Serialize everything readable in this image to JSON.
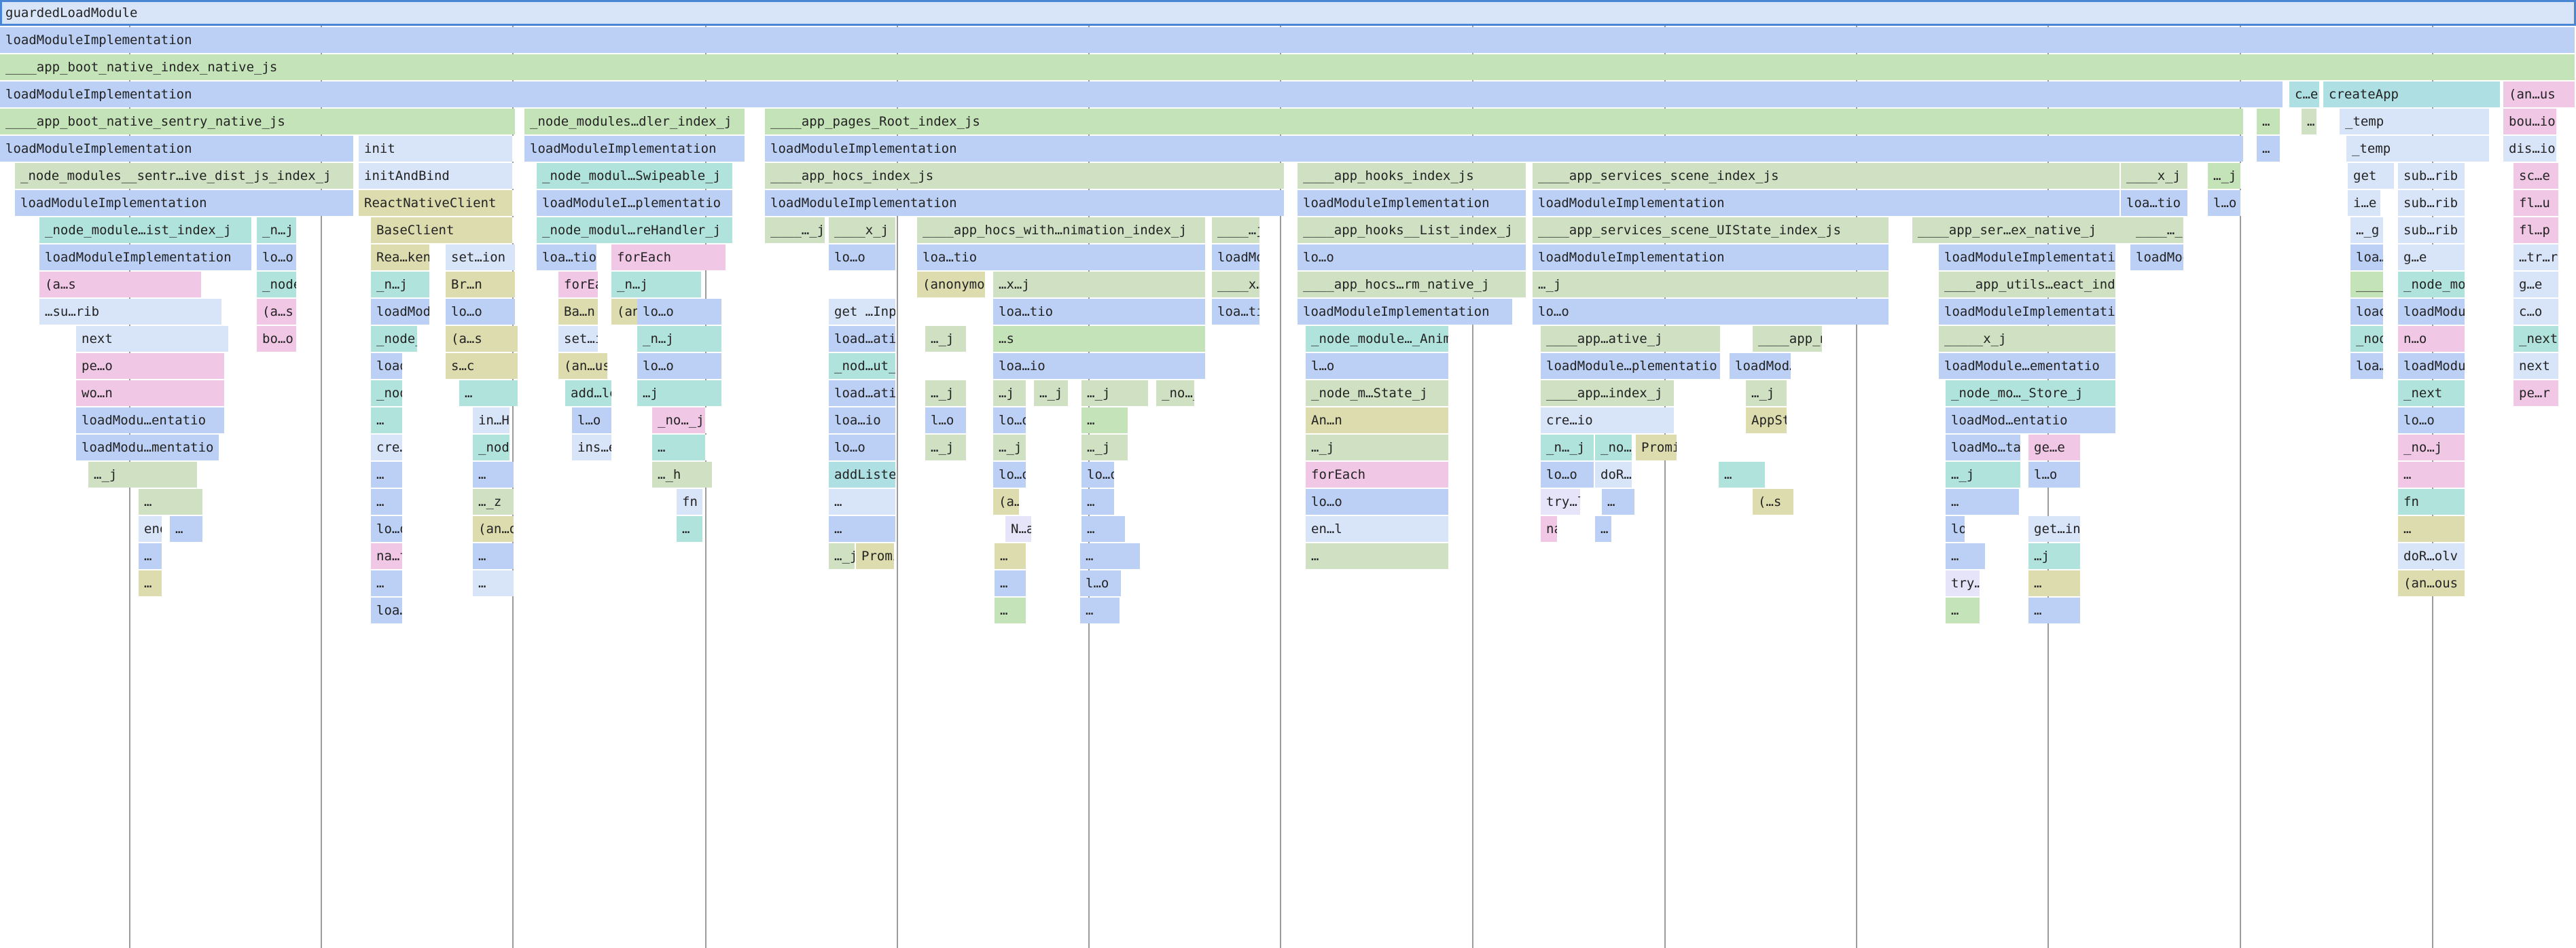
{
  "colors": {
    "blue": "#bcd0f5",
    "green": "#c5e3b8",
    "lightblue": "#d8e4f8",
    "teal": "#b0e3dc",
    "pink": "#f1c7e6",
    "olive": "#dcdcae",
    "sage": "#cfe1c2",
    "lavender": "#e6e4f8",
    "cyan": "#aedfe3",
    "rose": "#f3c4e1"
  },
  "frames": [
    {
      "text": "guardedLoadModule",
      "c": "lightblue",
      "sel": true
    },
    {
      "text": "loadModuleImplementation",
      "c": "blue"
    },
    {
      "text": "____app_boot_native_index_native_js",
      "c": "green"
    },
    {
      "text": "loadModuleImplementation",
      "c": "blue"
    },
    {
      "text": "c…e",
      "c": "cyan"
    },
    {
      "text": "createApp",
      "c": "cyan"
    },
    {
      "text": "(an…us",
      "c": "pink"
    },
    {
      "text": "____app_boot_native_sentry_native_js",
      "c": "green"
    },
    {
      "text": "_node_modules…dler_index_j",
      "c": "green"
    },
    {
      "text": "____app_pages_Root_index_js",
      "c": "green"
    },
    {
      "text": "…",
      "c": "green"
    },
    {
      "text": "…",
      "c": "sage"
    },
    {
      "text": "_temp",
      "c": "lightblue"
    },
    {
      "text": "bou…io",
      "c": "pink"
    },
    {
      "text": "loadModuleImplementation",
      "c": "blue"
    },
    {
      "text": "init",
      "c": "lightblue"
    },
    {
      "text": "loadModuleImplementation",
      "c": "blue"
    },
    {
      "text": "loadModuleImplementation",
      "c": "blue"
    },
    {
      "text": "…",
      "c": "blue"
    },
    {
      "text": "_temp",
      "c": "lightblue"
    },
    {
      "text": "dis…io",
      "c": "lightblue"
    },
    {
      "text": "_node_modules__sentr…ive_dist_js_index_j",
      "c": "sage"
    },
    {
      "text": "initAndBind",
      "c": "lightblue"
    },
    {
      "text": "_node_modul…Swipeable_j",
      "c": "teal"
    },
    {
      "text": "____app_hocs_index_js",
      "c": "sage"
    },
    {
      "text": "____app_hooks_index_js",
      "c": "sage"
    },
    {
      "text": "____app_services_scene_index_js",
      "c": "sage"
    },
    {
      "text": "____x_j",
      "c": "sage"
    },
    {
      "text": "…_j",
      "c": "green"
    },
    {
      "text": "get",
      "c": "lightblue"
    },
    {
      "text": "sub…rib",
      "c": "lightblue"
    },
    {
      "text": "sc…e",
      "c": "pink"
    },
    {
      "text": "loadModuleImplementation",
      "c": "blue"
    },
    {
      "text": "ReactNativeClient",
      "c": "olive"
    },
    {
      "text": "loadModuleI…plementatio",
      "c": "blue"
    },
    {
      "text": "loadModuleImplementation",
      "c": "blue"
    },
    {
      "text": "loadModuleImplementation",
      "c": "blue"
    },
    {
      "text": "loadModuleImplementation",
      "c": "blue"
    },
    {
      "text": "loa…tio",
      "c": "blue"
    },
    {
      "text": "l…o",
      "c": "blue"
    },
    {
      "text": "i…e",
      "c": "lightblue"
    },
    {
      "text": "sub…rib",
      "c": "lightblue"
    },
    {
      "text": "fl…u",
      "c": "pink"
    },
    {
      "text": "_node_module…ist_index_j",
      "c": "teal"
    },
    {
      "text": "_n…j",
      "c": "teal"
    },
    {
      "text": "BaseClient",
      "c": "olive"
    },
    {
      "text": "_node_modul…reHandler_j",
      "c": "teal"
    },
    {
      "text": "____…_j",
      "c": "sage"
    },
    {
      "text": "____x_j",
      "c": "sage"
    },
    {
      "text": "____app_hocs_with…nimation_index_j",
      "c": "sage"
    },
    {
      "text": "____…j",
      "c": "sage"
    },
    {
      "text": "____app_hooks__List_index_j",
      "c": "sage"
    },
    {
      "text": "____app_services_scene_UIState_index_js",
      "c": "sage"
    },
    {
      "text": "____app_ser…ex_native_j",
      "c": "sage"
    },
    {
      "text": "____…_j",
      "c": "sage"
    },
    {
      "text": "…_g",
      "c": "lightblue"
    },
    {
      "text": "sub…rib",
      "c": "lightblue"
    },
    {
      "text": "fl…p",
      "c": "pink"
    },
    {
      "text": "loadModuleImplementation",
      "c": "blue"
    },
    {
      "text": "lo…o",
      "c": "blue"
    },
    {
      "text": "Rea…ken",
      "c": "olive"
    },
    {
      "text": "set…ion",
      "c": "lightblue"
    },
    {
      "text": "loa…tio",
      "c": "blue"
    },
    {
      "text": "forEach",
      "c": "pink"
    },
    {
      "text": "lo…o",
      "c": "blue"
    },
    {
      "text": "loa…tio",
      "c": "blue"
    },
    {
      "text": "loadModuleImplementation",
      "c": "blue"
    },
    {
      "text": "lo…o",
      "c": "blue"
    },
    {
      "text": "loadModuleImplementation",
      "c": "blue"
    },
    {
      "text": "loadModuleImplementation",
      "c": "blue"
    },
    {
      "text": "loadModule…ementatio",
      "c": "blue"
    },
    {
      "text": "loa…io",
      "c": "blue"
    },
    {
      "text": "g…e",
      "c": "lightblue"
    },
    {
      "text": "…tr…rib",
      "c": "lightblue"
    },
    {
      "text": "(a…s",
      "c": "pink"
    },
    {
      "text": "_node_modu…st_index_j",
      "c": "teal"
    },
    {
      "text": "_n…j",
      "c": "teal"
    },
    {
      "text": "Br…n",
      "c": "olive"
    },
    {
      "text": "forEach",
      "c": "pink"
    },
    {
      "text": "_n…j",
      "c": "teal"
    },
    {
      "text": "(anonymous)",
      "c": "olive"
    },
    {
      "text": "…x…j",
      "c": "sage"
    },
    {
      "text": "____x…j",
      "c": "sage"
    },
    {
      "text": "____app_hocs…rm_native_j",
      "c": "sage"
    },
    {
      "text": "…_j",
      "c": "sage"
    },
    {
      "text": "____app_utils…eact_index_j",
      "c": "sage"
    },
    {
      "text": "____app_model_index_js",
      "c": "green"
    },
    {
      "text": "_node_modu…c_index_j",
      "c": "teal"
    },
    {
      "text": "g…e",
      "c": "lightblue"
    },
    {
      "text": "…su…rib",
      "c": "lightblue"
    },
    {
      "text": "(a…s",
      "c": "pink"
    },
    {
      "text": "loadModule…lementatio",
      "c": "blue"
    },
    {
      "text": "lo…o",
      "c": "blue"
    },
    {
      "text": "Ba…n",
      "c": "olive"
    },
    {
      "text": "(an…ous",
      "c": "olive"
    },
    {
      "text": "lo…o",
      "c": "blue"
    },
    {
      "text": "get …Inpu",
      "c": "lightblue"
    },
    {
      "text": "loa…tio",
      "c": "blue"
    },
    {
      "text": "loa…tio",
      "c": "blue"
    },
    {
      "text": "loadModuleImplementation",
      "c": "blue"
    },
    {
      "text": "lo…o",
      "c": "blue"
    },
    {
      "text": "loadModuleImplementation",
      "c": "blue"
    },
    {
      "text": "loadModuleImplementation",
      "c": "blue"
    },
    {
      "text": "loadModule…ementatio",
      "c": "blue"
    },
    {
      "text": "c…o",
      "c": "lightblue"
    },
    {
      "text": "next",
      "c": "lightblue"
    },
    {
      "text": "bo…o",
      "c": "pink"
    },
    {
      "text": "_node_mo…_index_j",
      "c": "teal"
    },
    {
      "text": "(a…s",
      "c": "olive"
    },
    {
      "text": "set…ion",
      "c": "lightblue"
    },
    {
      "text": "_n…j",
      "c": "teal"
    },
    {
      "text": "load…atio",
      "c": "blue"
    },
    {
      "text": "…_j",
      "c": "sage"
    },
    {
      "text": "…s",
      "c": "green"
    },
    {
      "text": "_node_module…_Animated_j",
      "c": "teal"
    },
    {
      "text": "____app…ative_j",
      "c": "sage"
    },
    {
      "text": "____app_mo…t_index_j",
      "c": "sage"
    },
    {
      "text": "_____x_j",
      "c": "sage"
    },
    {
      "text": "_node_modu…Router_j",
      "c": "teal"
    },
    {
      "text": "n…o",
      "c": "pink"
    },
    {
      "text": "_next",
      "c": "teal"
    },
    {
      "text": "pe…o",
      "c": "pink"
    },
    {
      "text": "loadModu…mentatio",
      "c": "blue"
    },
    {
      "text": "s…c",
      "c": "olive"
    },
    {
      "text": "(an…us",
      "c": "olive"
    },
    {
      "text": "lo…o",
      "c": "blue"
    },
    {
      "text": "_nod…ut_j",
      "c": "teal"
    },
    {
      "text": "loa…io",
      "c": "blue"
    },
    {
      "text": "l…o",
      "c": "blue"
    },
    {
      "text": "loadModule…plementatio",
      "c": "blue"
    },
    {
      "text": "loadMod…entatio",
      "c": "blue"
    },
    {
      "text": "loadModule…ementatio",
      "c": "blue"
    },
    {
      "text": "loa…tio",
      "c": "blue"
    },
    {
      "text": "loadModule…ementatio",
      "c": "blue"
    },
    {
      "text": "next",
      "c": "lightblue"
    },
    {
      "text": "wo…n",
      "c": "pink"
    },
    {
      "text": "_node_mo…_scope_j",
      "c": "teal"
    },
    {
      "text": "…",
      "c": "teal"
    },
    {
      "text": "add…le",
      "c": "teal"
    },
    {
      "text": "…j",
      "c": "teal"
    },
    {
      "text": "load…atio",
      "c": "blue"
    },
    {
      "text": "…_j",
      "c": "sage"
    },
    {
      "text": "…j",
      "c": "sage"
    },
    {
      "text": "…_j",
      "c": "sage"
    },
    {
      "text": "…_j",
      "c": "sage"
    },
    {
      "text": "_no…_j",
      "c": "sage"
    },
    {
      "text": "_node_m…State_j",
      "c": "sage"
    },
    {
      "text": "____app…index_j",
      "c": "sage"
    },
    {
      "text": "…_j",
      "c": "sage"
    },
    {
      "text": "_node_mo…_Store_j",
      "c": "teal"
    },
    {
      "text": "_next",
      "c": "teal"
    },
    {
      "text": "pe…r",
      "c": "pink"
    },
    {
      "text": "loadModu…entatio",
      "c": "blue"
    },
    {
      "text": "…",
      "c": "teal"
    },
    {
      "text": "in…H",
      "c": "lightblue"
    },
    {
      "text": "l…o",
      "c": "blue"
    },
    {
      "text": "_no…_j",
      "c": "pink"
    },
    {
      "text": "loa…io",
      "c": "blue"
    },
    {
      "text": "l…o",
      "c": "blue"
    },
    {
      "text": "lo…o",
      "c": "blue"
    },
    {
      "text": "…",
      "c": "green"
    },
    {
      "text": "An…n",
      "c": "olive"
    },
    {
      "text": "cre…io",
      "c": "lightblue"
    },
    {
      "text": "AppState",
      "c": "olive"
    },
    {
      "text": "loadMod…entatio",
      "c": "blue"
    },
    {
      "text": "lo…o",
      "c": "blue"
    },
    {
      "text": "loadModu…mentatio",
      "c": "blue"
    },
    {
      "text": "cre…Int",
      "c": "lightblue"
    },
    {
      "text": "_node_m…index_j",
      "c": "teal"
    },
    {
      "text": "ins…en",
      "c": "lightblue"
    },
    {
      "text": "…",
      "c": "teal"
    },
    {
      "text": "lo…o",
      "c": "blue"
    },
    {
      "text": "…_j",
      "c": "sage"
    },
    {
      "text": "…_j",
      "c": "sage"
    },
    {
      "text": "…_j",
      "c": "sage"
    },
    {
      "text": "…_j",
      "c": "sage"
    },
    {
      "text": "_n…_j",
      "c": "teal"
    },
    {
      "text": "_no…_j",
      "c": "teal"
    },
    {
      "text": "Promise",
      "c": "olive"
    },
    {
      "text": "loadMo…tatio",
      "c": "blue"
    },
    {
      "text": "ge…e",
      "c": "pink"
    },
    {
      "text": "_no…j",
      "c": "pink"
    },
    {
      "text": "…_j",
      "c": "sage"
    },
    {
      "text": "…",
      "c": "blue"
    },
    {
      "text": "…",
      "c": "blue"
    },
    {
      "text": "…_h",
      "c": "sage"
    },
    {
      "text": "addListener",
      "c": "cyan"
    },
    {
      "text": "lo…o",
      "c": "blue"
    },
    {
      "text": "lo…o",
      "c": "blue"
    },
    {
      "text": "forEach",
      "c": "pink"
    },
    {
      "text": "lo…o",
      "c": "blue"
    },
    {
      "text": "doR…olv",
      "c": "lightblue"
    },
    {
      "text": "…",
      "c": "teal"
    },
    {
      "text": "…_j",
      "c": "teal"
    },
    {
      "text": "l…o",
      "c": "blue"
    },
    {
      "text": "…",
      "c": "pink"
    },
    {
      "text": "…",
      "c": "sage"
    },
    {
      "text": "…",
      "c": "blue"
    },
    {
      "text": "…_z",
      "c": "sage"
    },
    {
      "text": "fn",
      "c": "lightblue"
    },
    {
      "text": "…",
      "c": "lightblue"
    },
    {
      "text": "(a…s",
      "c": "olive"
    },
    {
      "text": "…",
      "c": "blue"
    },
    {
      "text": "lo…o",
      "c": "blue"
    },
    {
      "text": "try…lTw",
      "c": "lavender"
    },
    {
      "text": "…",
      "c": "blue"
    },
    {
      "text": "(…s",
      "c": "olive"
    },
    {
      "text": "…",
      "c": "blue"
    },
    {
      "text": "fn",
      "c": "teal"
    },
    {
      "text": "enqueue…tiveCal",
      "c": "lightblue"
    },
    {
      "text": "…",
      "c": "blue"
    },
    {
      "text": "lo…o",
      "c": "blue"
    },
    {
      "text": "(an…ous",
      "c": "olive"
    },
    {
      "text": "…",
      "c": "teal"
    },
    {
      "text": "…",
      "c": "blue"
    },
    {
      "text": "N…a",
      "c": "lavender"
    },
    {
      "text": "…",
      "c": "blue"
    },
    {
      "text": "en…l",
      "c": "lightblue"
    },
    {
      "text": "nativeF…mmediat",
      "c": "pink"
    },
    {
      "text": "…",
      "c": "blue"
    },
    {
      "text": "lo…o",
      "c": "blue"
    },
    {
      "text": "get…ing",
      "c": "lightblue"
    },
    {
      "text": "…",
      "c": "olive"
    },
    {
      "text": "…",
      "c": "blue"
    },
    {
      "text": "na…t",
      "c": "pink"
    },
    {
      "text": "…",
      "c": "blue"
    },
    {
      "text": "…_j",
      "c": "sage"
    },
    {
      "text": "Promise",
      "c": "olive"
    },
    {
      "text": "…",
      "c": "olive"
    },
    {
      "text": "…",
      "c": "blue"
    },
    {
      "text": "…",
      "c": "sage"
    },
    {
      "text": "…",
      "c": "blue"
    },
    {
      "text": "…j",
      "c": "teal"
    },
    {
      "text": "doR…olv",
      "c": "lightblue"
    },
    {
      "text": "…",
      "c": "olive"
    },
    {
      "text": "…",
      "c": "blue"
    },
    {
      "text": "…",
      "c": "lightblue"
    },
    {
      "text": "…",
      "c": "blue"
    },
    {
      "text": "l…o",
      "c": "blue"
    },
    {
      "text": "try…lTw",
      "c": "lavender"
    },
    {
      "text": "…",
      "c": "olive"
    },
    {
      "text": "(an…ous",
      "c": "olive"
    },
    {
      "text": "loa…tio",
      "c": "blue"
    },
    {
      "text": "…",
      "c": "green"
    },
    {
      "text": "…",
      "c": "blue"
    },
    {
      "text": "…",
      "c": "green"
    },
    {
      "text": "…",
      "c": "blue"
    }
  ]
}
